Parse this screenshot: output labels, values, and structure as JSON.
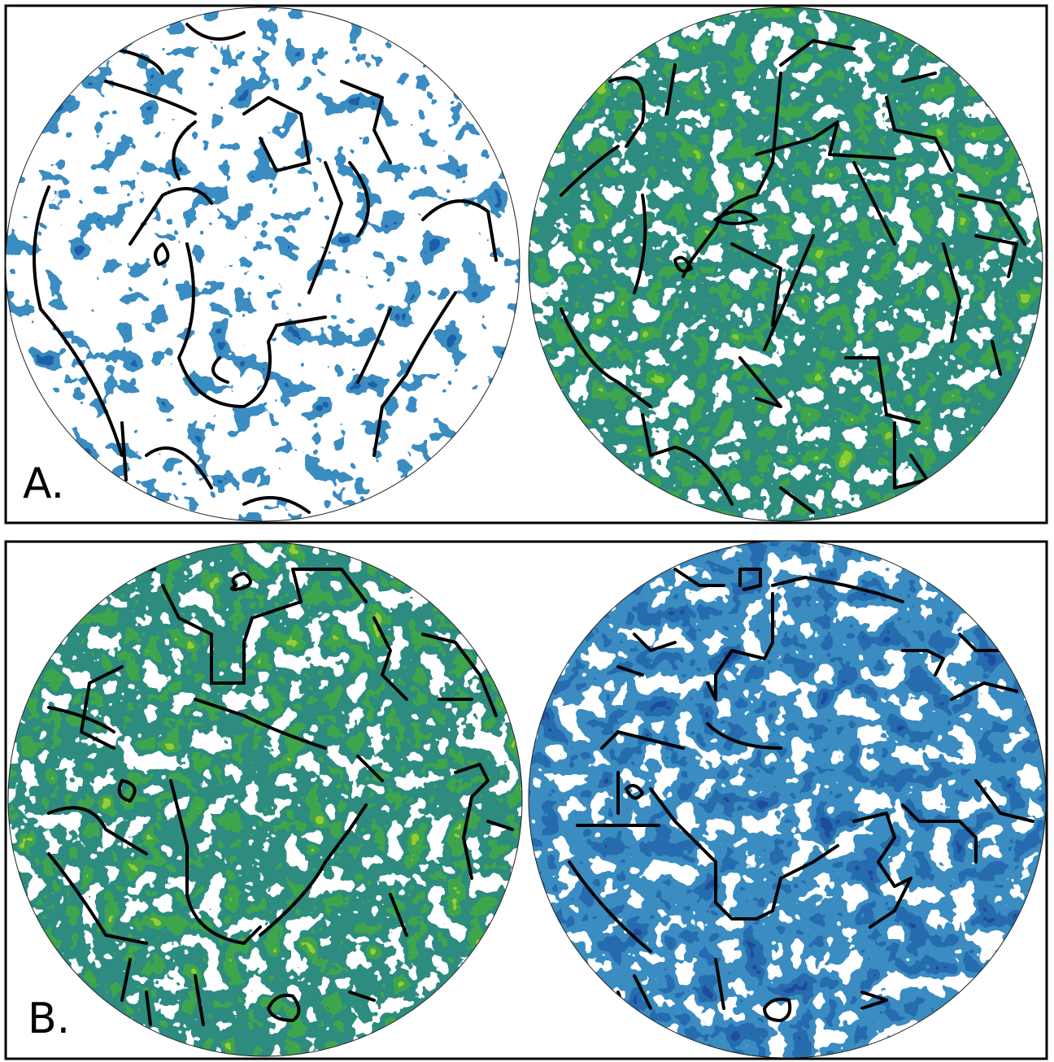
{
  "panels": [
    {
      "label": "A."
    },
    {
      "label": "B."
    }
  ]
}
